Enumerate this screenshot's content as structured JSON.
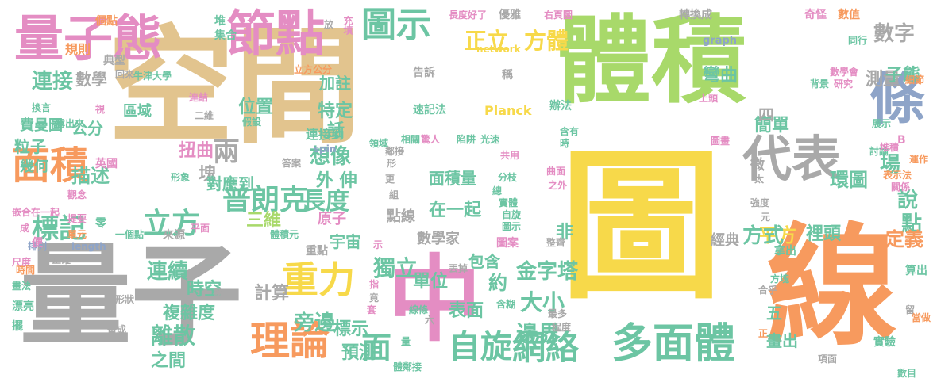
{
  "palette": {
    "tan": "#e2c48e",
    "green": "#a8d96a",
    "yellow": "#f7d94a",
    "orange": "#f79a5e",
    "grey": "#a9a9a9",
    "pink": "#e48dc3",
    "teal": "#6cc5a3",
    "blue": "#8ea4c8"
  },
  "words": [
    {
      "id": "kongjian",
      "text": "空間",
      "color": "tan"
    },
    {
      "id": "tiji",
      "text": "體積",
      "color": "green"
    },
    {
      "id": "tu",
      "text": "圖",
      "color": "yellow"
    },
    {
      "id": "xian",
      "text": "線",
      "color": "orange"
    },
    {
      "id": "liangzi",
      "text": "量子",
      "color": "grey"
    },
    {
      "id": "zhong",
      "text": "中",
      "color": "pink"
    },
    {
      "id": "liangzitai",
      "text": "量子態",
      "color": "pink"
    },
    {
      "id": "jiedian",
      "text": "節點",
      "color": "pink"
    },
    {
      "id": "mianji",
      "text": "面積",
      "color": "orange"
    },
    {
      "id": "daibiao",
      "text": "代表",
      "color": "grey"
    },
    {
      "id": "tiao",
      "text": "條",
      "color": "blue"
    },
    {
      "id": "lilun",
      "text": "理論",
      "color": "orange"
    },
    {
      "id": "zhongli",
      "text": "重力",
      "color": "yellow"
    },
    {
      "id": "duomianti",
      "text": "多面體",
      "color": "teal"
    },
    {
      "id": "wangluo",
      "text": "網絡",
      "color": "teal"
    },
    {
      "id": "zixuan",
      "text": "自旋",
      "color": "teal"
    },
    {
      "id": "mian",
      "text": "面",
      "color": "teal"
    },
    {
      "id": "tushi",
      "text": "圖示",
      "color": "teal"
    },
    {
      "id": "zhengli",
      "text": "正立",
      "color": "yellow"
    },
    {
      "id": "fangti",
      "text": "方體",
      "color": "yellow"
    },
    {
      "id": "shuzi",
      "text": "數字",
      "color": "grey"
    },
    {
      "id": "celiang",
      "text": "測量",
      "color": "grey"
    },
    {
      "id": "lianjie",
      "text": "連接",
      "color": "teal"
    },
    {
      "id": "shuxue",
      "text": "數學",
      "color": "grey"
    },
    {
      "id": "feimantu",
      "text": "費曼圖",
      "color": "teal"
    },
    {
      "id": "gongfen",
      "text": "公分",
      "color": "teal"
    },
    {
      "id": "quyu",
      "text": "區域",
      "color": "teal"
    },
    {
      "id": "weizhi",
      "text": "位置",
      "color": "teal"
    },
    {
      "id": "zhuzhu",
      "text": "加註",
      "color": "teal"
    },
    {
      "id": "tedeng",
      "text": "特定",
      "color": "teal"
    },
    {
      "id": "miaoshu",
      "text": "描述",
      "color": "teal"
    },
    {
      "id": "lizi",
      "text": "粒子",
      "color": "teal"
    },
    {
      "id": "jihe",
      "text": "幾何",
      "color": "teal"
    },
    {
      "id": "xiangxiang",
      "text": "想像",
      "color": "teal"
    },
    {
      "id": "liang",
      "text": "兩",
      "color": "grey"
    },
    {
      "id": "pulangke",
      "text": "普朗克",
      "color": "teal"
    },
    {
      "id": "changdu",
      "text": "長度",
      "color": "teal"
    },
    {
      "id": "lifang",
      "text": "立方",
      "color": "teal"
    },
    {
      "id": "biaoji",
      "text": "標記",
      "color": "teal"
    },
    {
      "id": "sanwei",
      "text": "三維",
      "color": "green"
    },
    {
      "id": "lianxu",
      "text": "連續",
      "color": "teal"
    },
    {
      "id": "lisan",
      "text": "離散",
      "color": "teal"
    },
    {
      "id": "fuzadu",
      "text": "複雜度",
      "color": "teal"
    },
    {
      "id": "shikong",
      "text": "時空",
      "color": "teal"
    },
    {
      "id": "zhijian",
      "text": "之間",
      "color": "teal"
    },
    {
      "id": "pangbian",
      "text": "旁邊",
      "color": "teal"
    },
    {
      "id": "biaoshi",
      "text": "標示",
      "color": "teal"
    },
    {
      "id": "yuce",
      "text": "預測",
      "color": "teal"
    },
    {
      "id": "jisuan",
      "text": "計算",
      "color": "grey"
    },
    {
      "id": "danwei",
      "text": "單位",
      "color": "teal"
    },
    {
      "id": "duli",
      "text": "獨立",
      "color": "teal"
    },
    {
      "id": "jinzita",
      "text": "金字塔",
      "color": "teal"
    },
    {
      "id": "daxiao",
      "text": "大小",
      "color": "teal"
    },
    {
      "id": "bianjie",
      "text": "邊界",
      "color": "teal"
    },
    {
      "id": "biaomian",
      "text": "表面",
      "color": "teal"
    },
    {
      "id": "pingfang",
      "text": "平方",
      "color": "yellow"
    },
    {
      "id": "fangshi",
      "text": "方式",
      "color": "teal"
    },
    {
      "id": "huantu",
      "text": "環圖",
      "color": "teal"
    },
    {
      "id": "chang",
      "text": "場",
      "color": "teal"
    },
    {
      "id": "shuo",
      "text": "說",
      "color": "teal"
    },
    {
      "id": "dian",
      "text": "點",
      "color": "teal"
    },
    {
      "id": "dingyi",
      "text": "定義",
      "color": "orange"
    },
    {
      "id": "litou",
      "text": "裡頭",
      "color": "teal"
    },
    {
      "id": "zaiyiqi",
      "text": "在一起",
      "color": "teal"
    },
    {
      "id": "mianjiliang",
      "text": "面積量",
      "color": "teal"
    },
    {
      "id": "waishen",
      "text": "外 伸",
      "color": "teal"
    },
    {
      "id": "kuai",
      "text": "塊",
      "color": "grey"
    },
    {
      "id": "duiyingdao",
      "text": "對應到",
      "color": "teal"
    },
    {
      "id": "niuqu",
      "text": "扭曲",
      "color": "pink"
    },
    {
      "id": "jianzhu",
      "text": "簡單",
      "color": "teal"
    },
    {
      "id": "huaqu",
      "text": "彎曲",
      "color": "teal"
    },
    {
      "id": "dianzhong",
      "text": "四",
      "color": "grey"
    },
    {
      "id": "xiao",
      "text": "子態",
      "color": "teal"
    },
    {
      "id": "wu",
      "text": "五",
      "color": "teal"
    },
    {
      "id": "yuzhou",
      "text": "宇宙",
      "color": "teal"
    },
    {
      "id": "hua",
      "text": "話",
      "color": "teal"
    },
    {
      "id": "shuxuejia",
      "text": "數學家",
      "color": "grey"
    },
    {
      "id": "lianjiedao",
      "text": "連接到",
      "color": "teal"
    },
    {
      "id": "dianxian",
      "text": "點線",
      "color": "grey"
    },
    {
      "id": "baohan",
      "text": "包含",
      "color": "teal"
    },
    {
      "id": "yue",
      "text": "約",
      "color": "teal"
    },
    {
      "id": "dianchu",
      "text": "畫出",
      "color": "teal"
    },
    {
      "id": "fei",
      "text": "非",
      "color": "teal"
    },
    {
      "id": "mingwen",
      "text": "經典",
      "color": "grey"
    },
    {
      "id": "yuanzi",
      "text": "原子",
      "color": "pink"
    },
    {
      "id": "tiny1",
      "text": "個點",
      "color": "orange"
    },
    {
      "id": "tiny2",
      "text": "規則",
      "color": "orange"
    },
    {
      "id": "tiny3",
      "text": "典型",
      "color": "grey"
    },
    {
      "id": "tiny4",
      "text": "集合",
      "color": "teal"
    },
    {
      "id": "tiny5",
      "text": "堆",
      "color": "teal"
    },
    {
      "id": "tiny6",
      "text": "放",
      "color": "grey"
    },
    {
      "id": "tiny7",
      "text": "充填",
      "color": "pink"
    },
    {
      "id": "tiny8",
      "text": "立方公分",
      "color": "orange"
    },
    {
      "id": "tiny9",
      "text": "network",
      "color": "yellow"
    },
    {
      "id": "tiny10",
      "text": "告訴",
      "color": "grey"
    },
    {
      "id": "tiny11",
      "text": "稱",
      "color": "grey"
    },
    {
      "id": "tiny12",
      "text": "Planck",
      "color": "yellow"
    },
    {
      "id": "tiny13",
      "text": "速記法",
      "color": "teal"
    },
    {
      "id": "tiny14",
      "text": "長度好了",
      "color": "pink"
    },
    {
      "id": "tiny15",
      "text": "優雅",
      "color": "grey"
    },
    {
      "id": "tiny16",
      "text": "右頁圖",
      "color": "pink"
    },
    {
      "id": "tiny17",
      "text": "轉換成",
      "color": "grey"
    },
    {
      "id": "tiny18",
      "text": "graph",
      "color": "blue"
    },
    {
      "id": "tiny19",
      "text": "奇怪",
      "color": "pink"
    },
    {
      "id": "tiny20",
      "text": "數值",
      "color": "orange"
    },
    {
      "id": "tiny21",
      "text": "細節",
      "color": "orange"
    },
    {
      "id": "tiny22",
      "text": "同行",
      "color": "teal"
    },
    {
      "id": "tiny23",
      "text": "數學會",
      "color": "pink"
    },
    {
      "id": "tiny24",
      "text": "研究",
      "color": "pink"
    },
    {
      "id": "tiny25",
      "text": "背景",
      "color": "teal"
    },
    {
      "id": "tiny26",
      "text": "上頭",
      "color": "pink"
    },
    {
      "id": "tiny27",
      "text": "辦法",
      "color": "teal"
    },
    {
      "id": "tiny28",
      "text": "展示",
      "color": "teal"
    },
    {
      "id": "tiny29",
      "text": "討論",
      "color": "teal"
    },
    {
      "id": "tiny30",
      "text": "堆積",
      "color": "pink"
    },
    {
      "id": "tiny31",
      "text": "B",
      "color": "pink"
    },
    {
      "id": "tiny32",
      "text": "運作",
      "color": "orange"
    },
    {
      "id": "tiny33",
      "text": "表示法",
      "color": "orange"
    },
    {
      "id": "tiny34",
      "text": "關係",
      "color": "pink"
    },
    {
      "id": "tiny35",
      "text": "含有",
      "color": "teal"
    },
    {
      "id": "tiny36",
      "text": "時",
      "color": "teal"
    },
    {
      "id": "tiny37",
      "text": "圖畫",
      "color": "pink"
    },
    {
      "id": "tiny38",
      "text": "微",
      "color": "grey"
    },
    {
      "id": "tiny39",
      "text": "太",
      "color": "grey"
    },
    {
      "id": "tiny40",
      "text": "強度",
      "color": "grey"
    },
    {
      "id": "tiny41",
      "text": "元",
      "color": "grey"
    },
    {
      "id": "tiny42",
      "text": "拿出",
      "color": "teal"
    },
    {
      "id": "tiny43",
      "text": "方塊",
      "color": "teal"
    },
    {
      "id": "tiny44",
      "text": "合乎",
      "color": "grey"
    },
    {
      "id": "tiny45",
      "text": "算出",
      "color": "teal"
    },
    {
      "id": "tiny46",
      "text": "留",
      "color": "grey"
    },
    {
      "id": "tiny47",
      "text": "當做",
      "color": "orange"
    },
    {
      "id": "tiny48",
      "text": "正",
      "color": "orange"
    },
    {
      "id": "tiny49",
      "text": "項面",
      "color": "grey"
    },
    {
      "id": "tiny50",
      "text": "實驗",
      "color": "teal"
    },
    {
      "id": "tiny51",
      "text": "數目",
      "color": "teal"
    },
    {
      "id": "tiny52",
      "text": "回來",
      "color": "grey"
    },
    {
      "id": "tiny53",
      "text": "換言",
      "color": "teal"
    },
    {
      "id": "tiny54",
      "text": "露出來",
      "color": "teal"
    },
    {
      "id": "tiny55",
      "text": "牛津大學",
      "color": "teal"
    },
    {
      "id": "tiny56",
      "text": "視",
      "color": "pink"
    },
    {
      "id": "tiny57",
      "text": "連結",
      "color": "pink"
    },
    {
      "id": "tiny58",
      "text": "二維",
      "color": "grey"
    },
    {
      "id": "tiny59",
      "text": "假設",
      "color": "teal"
    },
    {
      "id": "tiny60",
      "text": "英國",
      "color": "pink"
    },
    {
      "id": "tiny61",
      "text": "形象",
      "color": "teal"
    },
    {
      "id": "tiny62",
      "text": "觀念",
      "color": "pink"
    },
    {
      "id": "tiny63",
      "text": "嵌合在一起",
      "color": "pink"
    },
    {
      "id": "tiny64",
      "text": "提要",
      "color": "pink"
    },
    {
      "id": "tiny65",
      "text": "單元",
      "color": "orange"
    },
    {
      "id": "tiny66",
      "text": "零",
      "color": "teal"
    },
    {
      "id": "tiny67",
      "text": "一個點",
      "color": "teal"
    },
    {
      "id": "tiny68",
      "text": "來源",
      "color": "grey"
    },
    {
      "id": "tiny69",
      "text": "平面",
      "color": "pink"
    },
    {
      "id": "tiny70",
      "text": "體積元",
      "color": "teal"
    },
    {
      "id": "tiny71",
      "text": "length",
      "color": "blue"
    },
    {
      "id": "tiny72",
      "text": "排列",
      "color": "blue"
    },
    {
      "id": "tiny73",
      "text": "成",
      "color": "pink"
    },
    {
      "id": "tiny74",
      "text": "尺度",
      "color": "pink"
    },
    {
      "id": "tiny75",
      "text": "正確",
      "color": "grey"
    },
    {
      "id": "tiny76",
      "text": "時間",
      "color": "orange"
    },
    {
      "id": "tiny77",
      "text": "畫法",
      "color": "teal"
    },
    {
      "id": "tiny78",
      "text": "漂亮",
      "color": "teal"
    },
    {
      "id": "tiny79",
      "text": "形狀",
      "color": "grey"
    },
    {
      "id": "tiny80",
      "text": "擺",
      "color": "teal"
    },
    {
      "id": "tiny81",
      "text": "畫成",
      "color": "grey"
    },
    {
      "id": "tiny82",
      "text": "重點",
      "color": "grey"
    },
    {
      "id": "tiny83",
      "text": "整",
      "color": "grey"
    },
    {
      "id": "tiny84",
      "text": "答案",
      "color": "grey"
    },
    {
      "id": "tiny85",
      "text": "spin",
      "color": "blue"
    },
    {
      "id": "tiny86",
      "text": "領域",
      "color": "teal"
    },
    {
      "id": "tiny87",
      "text": "相關",
      "color": "teal"
    },
    {
      "id": "tiny88",
      "text": "驚人",
      "color": "pink"
    },
    {
      "id": "tiny89",
      "text": "陷阱",
      "color": "teal"
    },
    {
      "id": "tiny90",
      "text": "光速",
      "color": "teal"
    },
    {
      "id": "tiny91",
      "text": "共用",
      "color": "pink"
    },
    {
      "id": "tiny92",
      "text": "鄰接",
      "color": "grey"
    },
    {
      "id": "tiny93",
      "text": "形",
      "color": "grey"
    },
    {
      "id": "tiny94",
      "text": "更",
      "color": "grey"
    },
    {
      "id": "tiny95",
      "text": "組",
      "color": "grey"
    },
    {
      "id": "tiny96",
      "text": "分枝",
      "color": "teal"
    },
    {
      "id": "tiny97",
      "text": "總",
      "color": "teal"
    },
    {
      "id": "tiny98",
      "text": "曲面",
      "color": "pink"
    },
    {
      "id": "tiny99",
      "text": "之外",
      "color": "pink"
    },
    {
      "id": "tiny100",
      "text": "實體",
      "color": "teal"
    },
    {
      "id": "tiny101",
      "text": "自旋",
      "color": "teal"
    },
    {
      "id": "tiny102",
      "text": "圖示",
      "color": "teal"
    },
    {
      "id": "tiny103",
      "text": "整齊",
      "color": "grey"
    },
    {
      "id": "tiny104",
      "text": "圖案",
      "color": "pink"
    },
    {
      "id": "tiny105",
      "text": "丟掉",
      "color": "grey"
    },
    {
      "id": "tiny106",
      "text": "指",
      "color": "pink"
    },
    {
      "id": "tiny107",
      "text": "竟",
      "color": "grey"
    },
    {
      "id": "tiny108",
      "text": "示",
      "color": "pink"
    },
    {
      "id": "tiny109",
      "text": "套",
      "color": "pink"
    },
    {
      "id": "tiny110",
      "text": "線條",
      "color": "teal"
    },
    {
      "id": "tiny111",
      "text": "六",
      "color": "grey"
    },
    {
      "id": "tiny112",
      "text": "含糊",
      "color": "teal"
    },
    {
      "id": "tiny113",
      "text": "最多",
      "color": "grey"
    },
    {
      "id": "tiny114",
      "text": "程度",
      "color": "grey"
    },
    {
      "id": "tiny115",
      "text": "體鄰接",
      "color": "teal"
    },
    {
      "id": "tiny116",
      "text": "量",
      "color": "teal"
    },
    {
      "id": "tiny117",
      "text": "便",
      "color": "pink"
    }
  ]
}
